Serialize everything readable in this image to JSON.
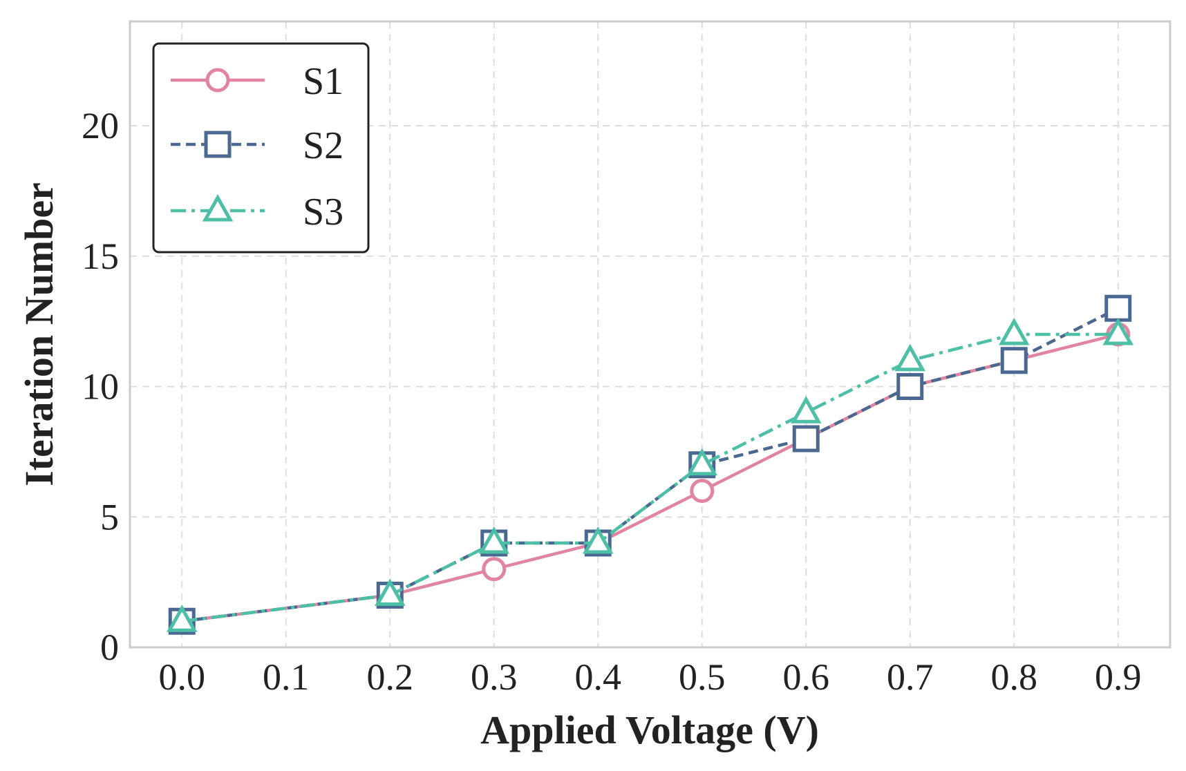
{
  "chart_data": {
    "type": "line",
    "xlabel": "Applied Voltage (V)",
    "ylabel": "Iteration Number",
    "xlim": [
      -0.05,
      0.95
    ],
    "ylim": [
      0,
      24
    ],
    "x_ticks": [
      "0.0",
      "0.1",
      "0.2",
      "0.3",
      "0.4",
      "0.5",
      "0.6",
      "0.7",
      "0.8",
      "0.9"
    ],
    "y_ticks": [
      "0",
      "5",
      "10",
      "15",
      "20"
    ],
    "grid": true,
    "legend_position": "top-left",
    "series": [
      {
        "name": "S1",
        "color": "#e0849f",
        "marker": "circle",
        "line_style": "solid",
        "x": [
          0.0,
          0.2,
          0.3,
          0.4,
          0.5,
          0.6,
          0.7,
          0.8,
          0.9
        ],
        "y": [
          1,
          2,
          3,
          4,
          6,
          8,
          10,
          11,
          12
        ]
      },
      {
        "name": "S2",
        "color": "#4a6890",
        "marker": "square",
        "line_style": "dashed",
        "x": [
          0.0,
          0.2,
          0.3,
          0.4,
          0.5,
          0.6,
          0.7,
          0.8,
          0.9
        ],
        "y": [
          1,
          2,
          4,
          4,
          7,
          8,
          10,
          11,
          13
        ]
      },
      {
        "name": "S3",
        "color": "#4cbfa6",
        "marker": "triangle",
        "line_style": "dashdot",
        "x": [
          0.0,
          0.2,
          0.3,
          0.4,
          0.5,
          0.6,
          0.7,
          0.8,
          0.9
        ],
        "y": [
          1,
          2,
          4,
          4,
          7,
          9,
          11,
          12,
          12
        ]
      }
    ]
  }
}
